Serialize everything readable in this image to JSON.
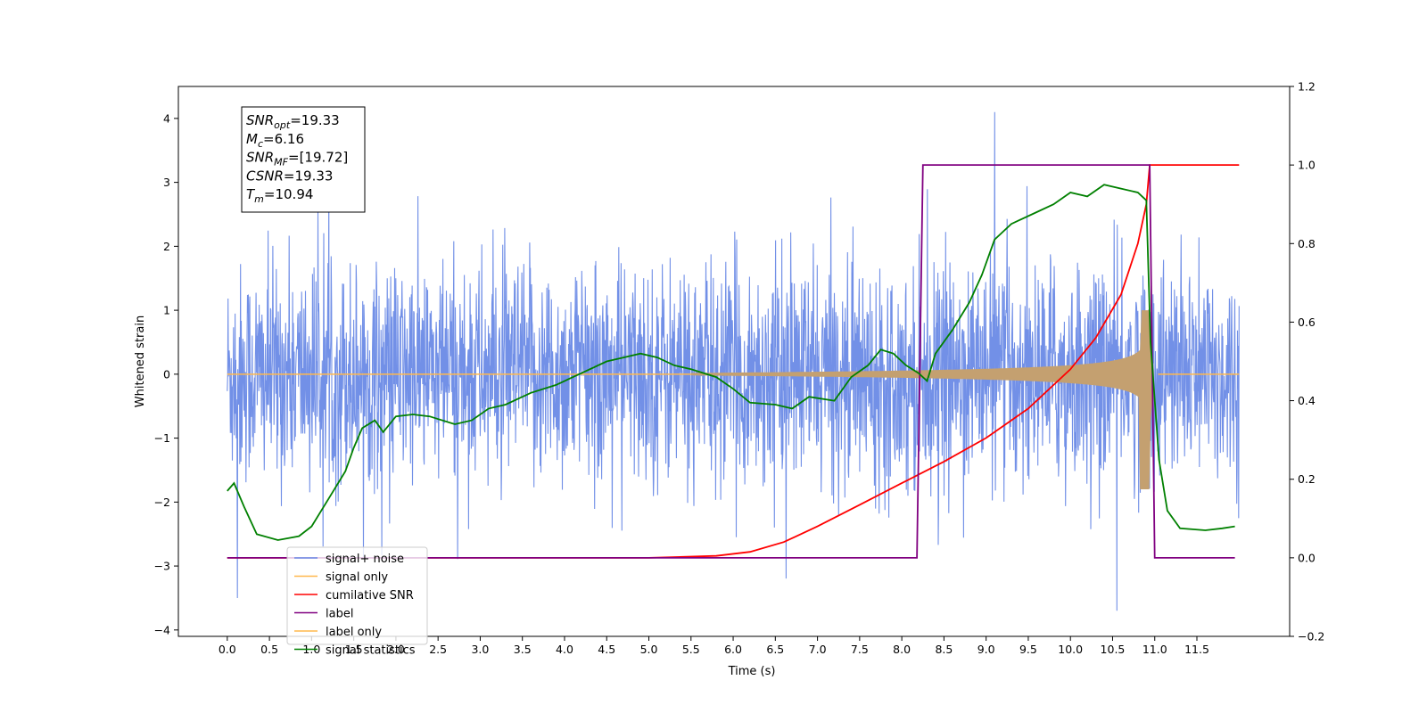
{
  "chart_data": {
    "type": "line",
    "xlabel": "Time (s)",
    "ylabel": "Whitened strain",
    "xlim": [
      -0.58,
      12.6
    ],
    "ylim_left": [
      -4.1,
      4.5
    ],
    "ylim_right": [
      -0.2,
      1.2
    ],
    "x_ticks": [
      "0.0",
      "0.5",
      "1.0",
      "1.5",
      "2.0",
      "2.5",
      "3.0",
      "3.5",
      "4.0",
      "4.5",
      "5.0",
      "5.5",
      "6.0",
      "6.5",
      "7.0",
      "7.5",
      "8.0",
      "8.5",
      "9.0",
      "9.5",
      "10.0",
      "10.5",
      "11.0",
      "11.5"
    ],
    "y_ticks_left": [
      "4",
      "3",
      "2",
      "1",
      "0",
      "−1",
      "−2",
      "−3",
      "−4"
    ],
    "y_ticks_right": [
      "1.2",
      "1.0",
      "0.8",
      "0.6",
      "0.4",
      "0.2",
      "0.0",
      "−0.2"
    ],
    "legend": [
      {
        "label": "signal+ noise",
        "color": "#6a8ae6"
      },
      {
        "label": "signal only",
        "color": "#ffb84d"
      },
      {
        "label": "cumilative SNR",
        "color": "#ff0000"
      },
      {
        "label": "label",
        "color": "#800080"
      },
      {
        "label": "label only",
        "color": "#ffb84d"
      },
      {
        "label": "signal statistics",
        "color": "#008000"
      }
    ],
    "legend_position": "lower-left",
    "noise_band": {
      "x_range": [
        0.0,
        12.0
      ],
      "typical_abs": 2.0,
      "extreme_peaks": [
        {
          "x": 9.1,
          "y": 4.1
        },
        {
          "x": 0.12,
          "y": -3.5
        },
        {
          "x": 10.55,
          "y": -3.7
        }
      ]
    },
    "signal_only": {
      "x_start": 5.5,
      "x_merger": 10.94,
      "peak_amplitude": 1.0,
      "fill_color": "#c4a070"
    },
    "cumulative_snr": {
      "axis": "right",
      "x": [
        0.0,
        5.0,
        5.8,
        6.2,
        6.6,
        7.0,
        7.5,
        8.0,
        8.5,
        9.0,
        9.5,
        10.0,
        10.3,
        10.6,
        10.8,
        10.9,
        10.94,
        12.0
      ],
      "y": [
        0.0,
        0.0,
        0.005,
        0.015,
        0.04,
        0.08,
        0.135,
        0.19,
        0.245,
        0.305,
        0.38,
        0.48,
        0.56,
        0.67,
        0.8,
        0.9,
        1.0,
        1.0
      ]
    },
    "label": {
      "axis": "right",
      "x": [
        0.0,
        8.18,
        8.25,
        10.94,
        11.0,
        11.95
      ],
      "y": [
        0.0,
        0.0,
        1.0,
        1.0,
        0.0,
        0.0
      ]
    },
    "signal_statistics": {
      "axis": "right",
      "x": [
        0.0,
        0.08,
        0.2,
        0.35,
        0.6,
        0.85,
        1.0,
        1.2,
        1.4,
        1.5,
        1.6,
        1.75,
        1.85,
        2.0,
        2.2,
        2.4,
        2.7,
        2.9,
        3.1,
        3.3,
        3.6,
        3.9,
        4.2,
        4.5,
        4.7,
        4.9,
        5.1,
        5.3,
        5.5,
        5.8,
        6.0,
        6.2,
        6.5,
        6.7,
        6.9,
        7.2,
        7.4,
        7.6,
        7.75,
        7.9,
        8.05,
        8.2,
        8.3,
        8.4,
        8.6,
        8.8,
        8.95,
        9.1,
        9.3,
        9.6,
        9.8,
        10.0,
        10.2,
        10.4,
        10.6,
        10.8,
        10.9,
        10.95,
        11.05,
        11.15,
        11.3,
        11.6,
        11.8,
        11.95
      ],
      "y": [
        0.17,
        0.19,
        0.13,
        0.06,
        0.045,
        0.055,
        0.08,
        0.15,
        0.22,
        0.28,
        0.33,
        0.35,
        0.32,
        0.36,
        0.365,
        0.36,
        0.34,
        0.35,
        0.38,
        0.39,
        0.42,
        0.44,
        0.47,
        0.5,
        0.51,
        0.52,
        0.51,
        0.49,
        0.48,
        0.46,
        0.43,
        0.395,
        0.39,
        0.38,
        0.41,
        0.4,
        0.46,
        0.49,
        0.53,
        0.52,
        0.49,
        0.47,
        0.45,
        0.52,
        0.58,
        0.65,
        0.72,
        0.81,
        0.85,
        0.88,
        0.9,
        0.93,
        0.92,
        0.95,
        0.94,
        0.93,
        0.91,
        0.55,
        0.25,
        0.12,
        0.075,
        0.07,
        0.075,
        0.08
      ]
    },
    "info_box": [
      {
        "sym": "SNR",
        "sub": "opt",
        "val": "=19.33"
      },
      {
        "sym": "M",
        "sub": "c",
        "val": "=6.16"
      },
      {
        "sym": "SNR",
        "sub": "MF",
        "val": "=[19.72]"
      },
      {
        "sym": "CSNR",
        "sub": "",
        "val": "=19.33"
      },
      {
        "sym": "T",
        "sub": "m",
        "val": "=10.94"
      }
    ]
  }
}
